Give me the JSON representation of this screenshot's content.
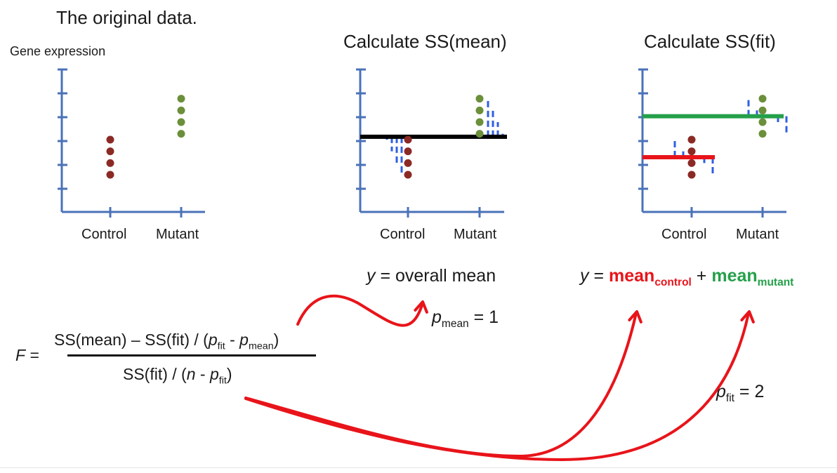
{
  "colors": {
    "axis": "#4a72b8",
    "control_dot": "#8b2a25",
    "mutant_dot": "#6b8f3a",
    "residual": "#2f5fe0",
    "overall_mean_line": "#000000",
    "control_mean_line": "#e8141a",
    "mutant_mean_line": "#25a04a",
    "arrow": "#e8141a"
  },
  "panels": [
    {
      "title": "The original data.",
      "ylabel": "Gene expression",
      "categories": [
        "Control",
        "Mutant"
      ]
    },
    {
      "title": "Calculate SS(mean)",
      "categories": [
        "Control",
        "Mutant"
      ]
    },
    {
      "title": "Calculate SS(fit)",
      "categories": [
        "Control",
        "Mutant"
      ]
    }
  ],
  "chart_data": {
    "type": "scatter",
    "categories": [
      "Control",
      "Mutant"
    ],
    "series": [
      {
        "name": "Control",
        "values": [
          2,
          1.6,
          1.2,
          0.8
        ]
      },
      {
        "name": "Mutant",
        "values": [
          3.4,
          3,
          2.6,
          2.2
        ]
      }
    ],
    "overall_mean": 2.1,
    "control_mean": 1.4,
    "mutant_mean": 2.8
  },
  "equations": {
    "overall": {
      "y": "y",
      "eq": " = overall mean"
    },
    "fit": {
      "y": "y",
      "eq": " = ",
      "mean1": "mean",
      "sub1": "control",
      "plus": " + ",
      "mean2": "mean",
      "sub2": "mutant"
    },
    "p_mean": {
      "p": "p",
      "sub": "mean",
      "eq": " = 1"
    },
    "p_fit": {
      "p": "p",
      "sub": "fit",
      "eq": " = 2"
    },
    "F": {
      "label": "F",
      "equals": " =",
      "num1": "SS(mean) – SS(fit) / (",
      "num_p1": "p",
      "num_s1": "fit",
      "num_mid": " - ",
      "num_p2": "p",
      "num_s2": "mean",
      "num_end": ")",
      "den1": "SS(fit) / (",
      "den_n": "n",
      "den_mid": " - ",
      "den_p": "p",
      "den_s": "fit",
      "den_end": ")"
    }
  }
}
